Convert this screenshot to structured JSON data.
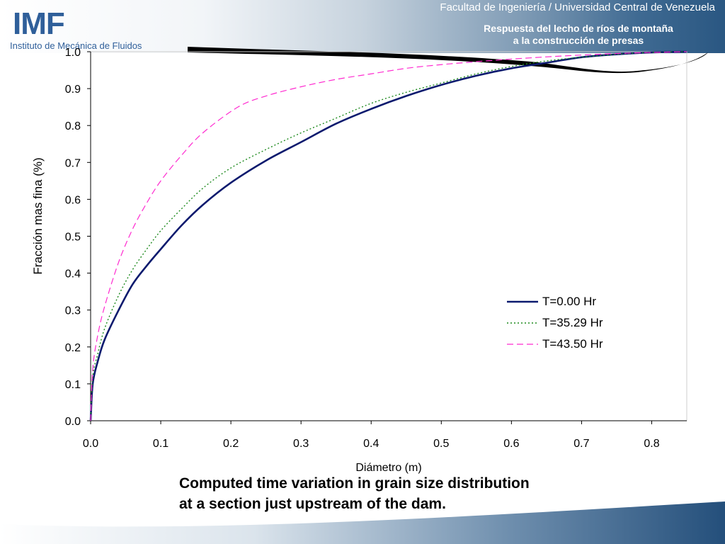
{
  "header": {
    "logo_text": "IMF",
    "logo_subtitle": "Instituto de Mecánica de Fluidos",
    "faculty": "Facultad de Ingeniería / Universidad Central de Venezuela",
    "subtitle_line1": "Respuesta del lecho de ríos de montaña",
    "subtitle_line2": "a la construcción de presas"
  },
  "caption": {
    "line1": "Computed time variation in grain size distribution",
    "line2": "at a section just upstream of the dam."
  },
  "colors": {
    "header_dark": "#2a5782",
    "logo_blue": "#2f5f9a",
    "series_0": "#0b1a6e",
    "series_1": "#1e8a1e",
    "series_2": "#ff2bd0"
  },
  "chart_data": {
    "type": "line",
    "xlabel": "Diámetro (m)",
    "ylabel": "Fracción mas fina (%)",
    "xlim": [
      0,
      0.85
    ],
    "ylim": [
      0,
      1.0
    ],
    "xticks": [
      "0.0",
      "0.1",
      "0.2",
      "0.3",
      "0.4",
      "0.5",
      "0.6",
      "0.7",
      "0.8"
    ],
    "yticks": [
      "0.0",
      "0.1",
      "0.2",
      "0.3",
      "0.4",
      "0.5",
      "0.6",
      "0.7",
      "0.8",
      "0.9",
      "1.0"
    ],
    "grid": false,
    "legend_position": "right",
    "series": [
      {
        "name": "T=0.00 Hr",
        "style": "solid",
        "x": [
          0,
          0.003,
          0.01,
          0.02,
          0.04,
          0.06,
          0.08,
          0.1,
          0.13,
          0.16,
          0.2,
          0.25,
          0.3,
          0.35,
          0.4,
          0.45,
          0.5,
          0.55,
          0.6,
          0.65,
          0.7,
          0.75,
          0.8,
          0.85
        ],
        "y": [
          0,
          0.1,
          0.16,
          0.22,
          0.3,
          0.37,
          0.42,
          0.465,
          0.53,
          0.585,
          0.645,
          0.705,
          0.755,
          0.805,
          0.845,
          0.88,
          0.91,
          0.935,
          0.955,
          0.97,
          0.985,
          0.993,
          0.998,
          1.0
        ]
      },
      {
        "name": "T=35.29 Hr",
        "style": "dotted",
        "x": [
          0,
          0.003,
          0.01,
          0.02,
          0.04,
          0.06,
          0.08,
          0.1,
          0.13,
          0.16,
          0.2,
          0.25,
          0.3,
          0.35,
          0.4,
          0.45,
          0.5,
          0.55,
          0.6,
          0.65,
          0.7,
          0.75,
          0.8,
          0.85
        ],
        "y": [
          0,
          0.12,
          0.18,
          0.25,
          0.34,
          0.41,
          0.465,
          0.515,
          0.575,
          0.63,
          0.685,
          0.735,
          0.78,
          0.82,
          0.86,
          0.89,
          0.915,
          0.94,
          0.96,
          0.975,
          0.985,
          0.993,
          0.998,
          1.0
        ]
      },
      {
        "name": "T=43.50 Hr",
        "style": "dashed",
        "x": [
          0,
          0.003,
          0.01,
          0.02,
          0.04,
          0.06,
          0.08,
          0.1,
          0.13,
          0.16,
          0.21,
          0.25,
          0.3,
          0.35,
          0.4,
          0.45,
          0.5,
          0.55,
          0.6,
          0.65,
          0.7,
          0.75,
          0.8,
          0.85
        ],
        "y": [
          0,
          0.14,
          0.23,
          0.31,
          0.43,
          0.52,
          0.59,
          0.65,
          0.72,
          0.78,
          0.85,
          0.88,
          0.905,
          0.925,
          0.94,
          0.955,
          0.965,
          0.973,
          0.98,
          0.986,
          0.991,
          0.995,
          0.998,
          1.0
        ]
      }
    ]
  }
}
